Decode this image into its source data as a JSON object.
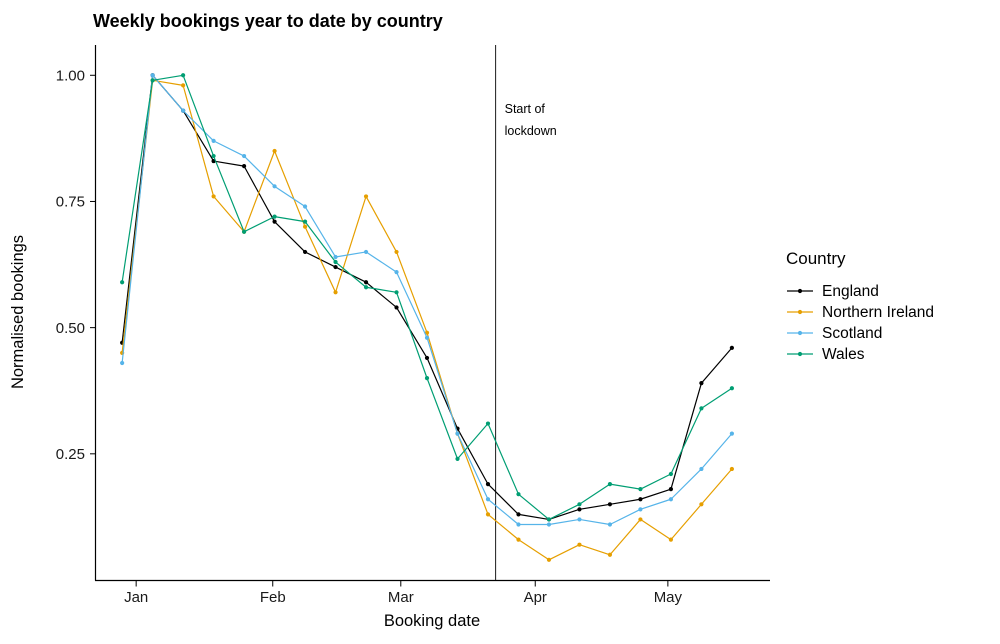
{
  "chart_data": {
    "type": "line",
    "title": "Weekly bookings year to date by country",
    "xlabel": "Booking date",
    "ylabel": "Normalised bookings",
    "legend_title": "Country",
    "x_unit": "week",
    "x_week_index": [
      0,
      1,
      2,
      3,
      4,
      5,
      6,
      7,
      8,
      9,
      10,
      11,
      12,
      13,
      14,
      15,
      16,
      17,
      18,
      19,
      20
    ],
    "series": [
      {
        "name": "England",
        "color": "#000000",
        "values": [
          0.47,
          1.0,
          0.93,
          0.83,
          0.82,
          0.71,
          0.65,
          0.62,
          0.59,
          0.54,
          0.44,
          0.3,
          0.19,
          0.13,
          0.12,
          0.14,
          0.15,
          0.16,
          0.18,
          0.39,
          0.46
        ]
      },
      {
        "name": "Northern Ireland",
        "color": "#E69F00",
        "values": [
          0.45,
          0.99,
          0.98,
          0.76,
          0.69,
          0.85,
          0.7,
          0.57,
          0.76,
          0.65,
          0.49,
          0.29,
          0.13,
          0.08,
          0.04,
          0.07,
          0.05,
          0.12,
          0.08,
          0.15,
          0.22
        ]
      },
      {
        "name": "Scotland",
        "color": "#56B4E9",
        "values": [
          0.43,
          1.0,
          0.93,
          0.87,
          0.84,
          0.78,
          0.74,
          0.64,
          0.65,
          0.61,
          0.48,
          0.29,
          0.16,
          0.11,
          0.11,
          0.12,
          0.11,
          0.14,
          0.16,
          0.22,
          0.29
        ]
      },
      {
        "name": "Wales",
        "color": "#009E73",
        "values": [
          0.59,
          0.99,
          1.0,
          0.84,
          0.69,
          0.72,
          0.71,
          0.63,
          0.58,
          0.57,
          0.4,
          0.24,
          0.31,
          0.17,
          0.12,
          0.15,
          0.19,
          0.18,
          0.21,
          0.34,
          0.38
        ]
      }
    ],
    "x_ticks": [
      {
        "label": "Jan",
        "week": 0.46
      },
      {
        "label": "Feb",
        "week": 4.94
      },
      {
        "label": "Mar",
        "week": 9.14
      },
      {
        "label": "Apr",
        "week": 13.55
      },
      {
        "label": "May",
        "week": 17.9
      }
    ],
    "y_ticks": [
      {
        "label": "1.00",
        "value": 1.0
      },
      {
        "label": "0.75",
        "value": 0.75
      },
      {
        "label": "0.50",
        "value": 0.5
      },
      {
        "label": "0.25",
        "value": 0.25
      }
    ],
    "ylim": [
      0,
      1.06
    ],
    "xlim_weeks": [
      -0.89,
      21.25
    ],
    "grid": "none",
    "legend_position": "right",
    "annotation": {
      "label_line1": "Start of",
      "label_line2": "lockdown",
      "x_week": 12.25
    }
  }
}
